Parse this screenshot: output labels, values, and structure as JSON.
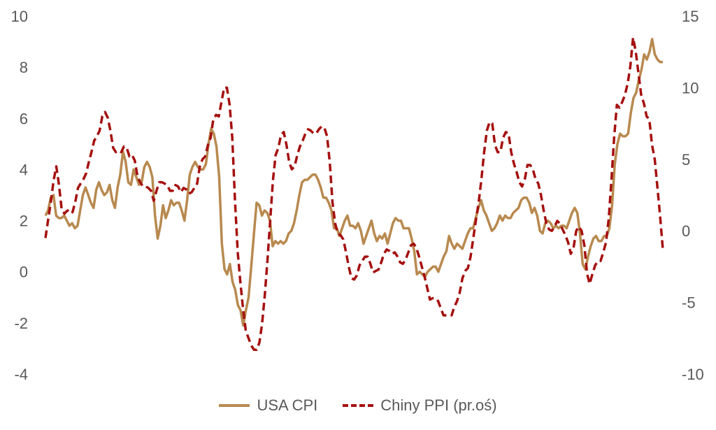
{
  "chart_data": {
    "type": "line",
    "title": "",
    "xlabel": "",
    "ylabel": "",
    "y_left": {
      "ylim": [
        -4,
        10
      ],
      "ticks": [
        -4,
        -2,
        0,
        2,
        4,
        6,
        8,
        10
      ]
    },
    "y_right": {
      "ylim": [
        -10,
        15
      ],
      "ticks": [
        -10,
        -5,
        0,
        5,
        10,
        15
      ]
    },
    "grid": false,
    "legend_position": "bottom",
    "series": [
      {
        "name": "USA CPI",
        "axis": "left",
        "color": "#b8894f",
        "dash": "solid",
        "values": [
          2.2,
          2.4,
          2.9,
          3.0,
          2.2,
          2.1,
          2.1,
          2.2,
          2.0,
          1.8,
          1.9,
          1.7,
          1.8,
          2.4,
          3.0,
          3.3,
          3.0,
          2.7,
          2.5,
          3.2,
          3.5,
          3.2,
          3.0,
          3.1,
          3.4,
          2.8,
          2.5,
          3.3,
          3.8,
          4.7,
          4.3,
          3.5,
          3.4,
          4.0,
          3.7,
          3.4,
          3.5,
          4.1,
          4.3,
          4.1,
          3.7,
          2.2,
          1.3,
          1.8,
          2.6,
          2.1,
          2.4,
          2.8,
          2.6,
          2.7,
          2.7,
          2.4,
          2.0,
          2.8,
          3.8,
          4.1,
          4.3,
          4.1,
          4.0,
          4.0,
          4.2,
          5.0,
          5.6,
          5.4,
          4.9,
          3.7,
          1.1,
          0.1,
          -0.1,
          0.3,
          -0.4,
          -0.7,
          -1.3,
          -1.5,
          -2.1,
          -1.5,
          -1.0,
          0.2,
          1.5,
          2.7,
          2.6,
          2.2,
          2.4,
          2.3,
          2.0,
          1.0,
          1.2,
          1.1,
          1.2,
          1.1,
          1.2,
          1.5,
          1.6,
          1.9,
          2.4,
          3.0,
          3.5,
          3.6,
          3.6,
          3.7,
          3.8,
          3.8,
          3.6,
          3.3,
          2.9,
          2.9,
          2.7,
          2.4,
          1.7,
          1.7,
          1.4,
          1.7,
          2.0,
          2.2,
          1.8,
          1.8,
          1.7,
          1.9,
          1.6,
          1.1,
          1.4,
          1.7,
          2.0,
          1.5,
          1.2,
          1.4,
          1.3,
          1.5,
          1.1,
          1.5,
          1.9,
          2.1,
          2.0,
          2.0,
          1.7,
          1.7,
          1.7,
          1.3,
          0.8,
          -0.1,
          0.0,
          -0.1,
          -0.2,
          0.0,
          0.1,
          0.2,
          0.2,
          0.0,
          0.3,
          0.6,
          0.8,
          1.4,
          1.1,
          0.9,
          1.1,
          1.0,
          0.9,
          1.2,
          1.5,
          1.7,
          1.7,
          2.1,
          2.5,
          2.8,
          2.4,
          2.2,
          1.9,
          1.6,
          1.7,
          1.9,
          2.2,
          2.0,
          2.2,
          2.1,
          2.1,
          2.3,
          2.4,
          2.5,
          2.8,
          2.9,
          2.9,
          2.7,
          2.3,
          2.5,
          2.2,
          1.6,
          1.5,
          1.9,
          2.0,
          1.9,
          1.7,
          1.8,
          1.7,
          1.8,
          1.8,
          1.7,
          2.0,
          2.3,
          2.5,
          2.3,
          1.5,
          0.3,
          0.1,
          0.6,
          1.0,
          1.3,
          1.4,
          1.2,
          1.2,
          1.4,
          1.4,
          1.7,
          2.6,
          4.2,
          5.0,
          5.4,
          5.3,
          5.3,
          5.4,
          6.2,
          6.8,
          7.0,
          7.5,
          7.9,
          8.5,
          8.3,
          8.6,
          9.1,
          8.5,
          8.3,
          8.2,
          8.2
        ]
      },
      {
        "name": "Chiny PPI (pr.oś)",
        "axis": "right",
        "color": "#a50f0f",
        "dash": "dashed",
        "values": [
          -0.5,
          0.8,
          2.0,
          3.5,
          4.5,
          3.2,
          1.5,
          1.2,
          1.4,
          1.5,
          1.3,
          2.0,
          3.0,
          3.3,
          3.6,
          4.0,
          4.8,
          5.5,
          6.3,
          6.6,
          7.0,
          8.0,
          8.3,
          7.9,
          7.0,
          5.8,
          5.5,
          5.6,
          5.5,
          5.9,
          5.8,
          5.2,
          5.3,
          4.9,
          3.8,
          3.4,
          3.1,
          3.1,
          3.0,
          2.8,
          2.1,
          2.8,
          3.4,
          3.4,
          3.3,
          3.2,
          2.8,
          2.8,
          3.2,
          3.1,
          2.7,
          3.0,
          2.9,
          2.6,
          2.7,
          3.0,
          3.3,
          4.5,
          5.0,
          5.2,
          6.0,
          6.5,
          7.8,
          8.1,
          8.0,
          9.0,
          10.0,
          10.0,
          8.8,
          6.5,
          2.1,
          -1.5,
          -3.6,
          -5.5,
          -7.0,
          -7.5,
          -8.0,
          -8.3,
          -8.3,
          -7.8,
          -6.5,
          -4.5,
          -2.0,
          0.7,
          3.5,
          5.3,
          5.8,
          6.7,
          6.9,
          6.0,
          4.8,
          4.3,
          4.5,
          5.3,
          5.9,
          6.3,
          6.8,
          7.1,
          7.0,
          6.8,
          6.8,
          7.1,
          7.3,
          7.2,
          6.6,
          4.8,
          2.0,
          0.5,
          -0.2,
          -0.3,
          -0.6,
          -1.5,
          -2.5,
          -3.3,
          -3.4,
          -3.1,
          -2.4,
          -2.1,
          -1.8,
          -1.8,
          -2.3,
          -2.9,
          -2.8,
          -2.7,
          -2.2,
          -1.6,
          -1.3,
          -1.4,
          -1.6,
          -1.5,
          -1.8,
          -2.2,
          -2.3,
          -2.0,
          -1.5,
          -1.0,
          -0.9,
          -1.2,
          -1.8,
          -2.5,
          -3.2,
          -4.0,
          -4.8,
          -4.7,
          -4.7,
          -4.9,
          -5.4,
          -5.9,
          -5.9,
          -5.9,
          -5.9,
          -5.3,
          -4.9,
          -4.3,
          -3.3,
          -2.8,
          -2.6,
          -1.8,
          -0.5,
          0.8,
          2.0,
          3.6,
          5.5,
          7.0,
          7.6,
          7.5,
          6.0,
          5.5,
          5.5,
          6.5,
          6.9,
          6.8,
          5.5,
          4.7,
          4.1,
          3.4,
          3.1,
          3.6,
          4.6,
          4.6,
          4.3,
          3.6,
          3.3,
          2.5,
          1.4,
          0.5,
          0.1,
          0.0,
          0.3,
          0.7,
          0.5,
          0.1,
          -0.3,
          -0.8,
          -1.6,
          -1.2,
          0.0,
          0.3,
          0.0,
          -1.0,
          -3.0,
          -3.7,
          -3.0,
          -2.4,
          -2.1,
          -2.1,
          -1.5,
          -0.8,
          0.8,
          3.5,
          6.5,
          8.8,
          8.6,
          9.0,
          9.5,
          10.3,
          11.5,
          13.5,
          12.5,
          11.0,
          9.5,
          8.9,
          8.0,
          7.8,
          6.0,
          5.0,
          3.0,
          1.0,
          -1.3
        ]
      }
    ]
  }
}
